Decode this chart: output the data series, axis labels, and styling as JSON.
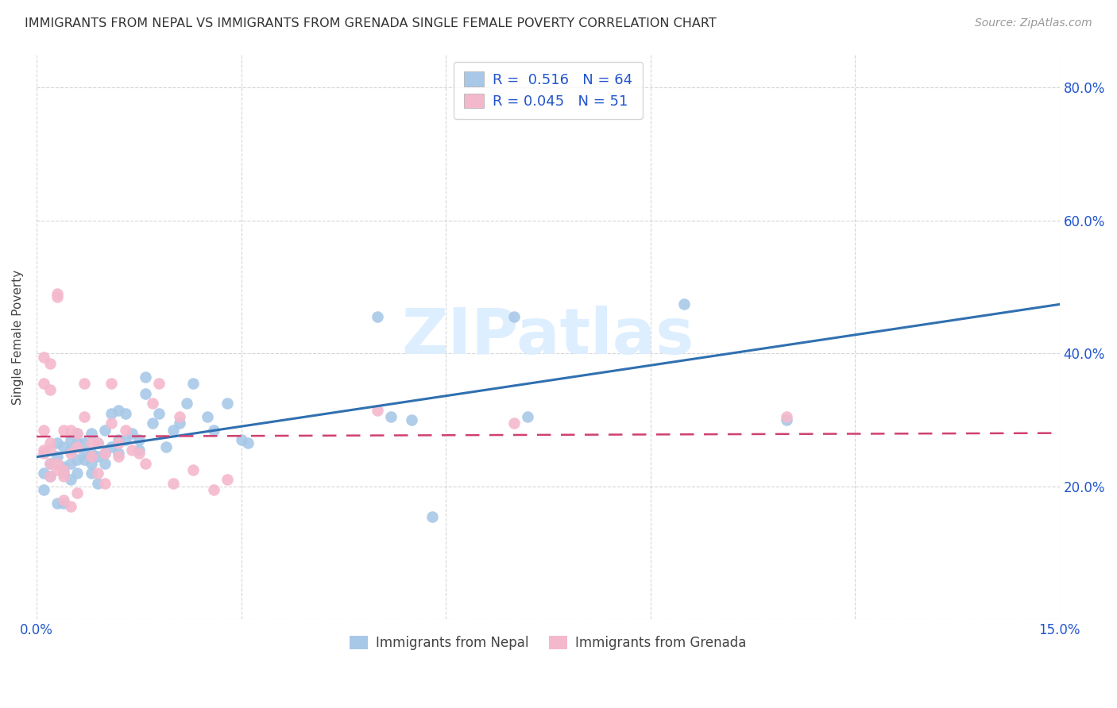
{
  "title": "IMMIGRANTS FROM NEPAL VS IMMIGRANTS FROM GRENADA SINGLE FEMALE POVERTY CORRELATION CHART",
  "source": "Source: ZipAtlas.com",
  "ylabel": "Single Female Poverty",
  "x_min": 0.0,
  "x_max": 0.15,
  "y_min": 0.0,
  "y_max": 0.85,
  "nepal_R": 0.516,
  "nepal_N": 64,
  "grenada_R": 0.045,
  "grenada_N": 51,
  "nepal_color": "#a8c8e8",
  "grenada_color": "#f4b8cc",
  "nepal_line_color": "#3070b0",
  "grenada_line_color": "#d04070",
  "background_color": "#ffffff",
  "grid_color": "#cccccc",
  "watermark_color": "#ddeeff",
  "nepal_scatter_x": [
    0.001,
    0.001,
    0.002,
    0.002,
    0.003,
    0.003,
    0.003,
    0.004,
    0.004,
    0.004,
    0.004,
    0.005,
    0.005,
    0.005,
    0.005,
    0.006,
    0.006,
    0.006,
    0.006,
    0.007,
    0.007,
    0.007,
    0.008,
    0.008,
    0.008,
    0.008,
    0.009,
    0.009,
    0.009,
    0.01,
    0.01,
    0.01,
    0.011,
    0.011,
    0.012,
    0.012,
    0.012,
    0.013,
    0.013,
    0.014,
    0.015,
    0.015,
    0.016,
    0.016,
    0.017,
    0.018,
    0.019,
    0.02,
    0.021,
    0.022,
    0.023,
    0.025,
    0.026,
    0.028,
    0.03,
    0.031,
    0.05,
    0.052,
    0.055,
    0.058,
    0.07,
    0.072,
    0.095,
    0.11
  ],
  "nepal_scatter_y": [
    0.22,
    0.195,
    0.235,
    0.215,
    0.245,
    0.175,
    0.265,
    0.26,
    0.23,
    0.22,
    0.175,
    0.235,
    0.255,
    0.27,
    0.21,
    0.24,
    0.265,
    0.28,
    0.22,
    0.25,
    0.24,
    0.265,
    0.25,
    0.235,
    0.28,
    0.22,
    0.245,
    0.265,
    0.205,
    0.25,
    0.235,
    0.285,
    0.26,
    0.31,
    0.27,
    0.25,
    0.315,
    0.27,
    0.31,
    0.28,
    0.255,
    0.27,
    0.34,
    0.365,
    0.295,
    0.31,
    0.26,
    0.285,
    0.295,
    0.325,
    0.355,
    0.305,
    0.285,
    0.325,
    0.27,
    0.265,
    0.455,
    0.305,
    0.3,
    0.155,
    0.455,
    0.305,
    0.475,
    0.3
  ],
  "grenada_scatter_x": [
    0.001,
    0.001,
    0.001,
    0.001,
    0.001,
    0.002,
    0.002,
    0.002,
    0.002,
    0.002,
    0.002,
    0.003,
    0.003,
    0.003,
    0.003,
    0.004,
    0.004,
    0.004,
    0.004,
    0.005,
    0.005,
    0.005,
    0.006,
    0.006,
    0.006,
    0.007,
    0.007,
    0.008,
    0.008,
    0.009,
    0.009,
    0.01,
    0.01,
    0.011,
    0.011,
    0.012,
    0.012,
    0.013,
    0.014,
    0.015,
    0.016,
    0.017,
    0.018,
    0.02,
    0.021,
    0.023,
    0.026,
    0.028,
    0.05,
    0.07,
    0.11
  ],
  "grenada_scatter_y": [
    0.395,
    0.355,
    0.285,
    0.255,
    0.25,
    0.265,
    0.385,
    0.345,
    0.255,
    0.235,
    0.215,
    0.485,
    0.49,
    0.235,
    0.225,
    0.285,
    0.225,
    0.215,
    0.18,
    0.285,
    0.25,
    0.17,
    0.28,
    0.26,
    0.19,
    0.355,
    0.305,
    0.265,
    0.245,
    0.265,
    0.22,
    0.25,
    0.205,
    0.355,
    0.295,
    0.265,
    0.245,
    0.285,
    0.255,
    0.25,
    0.235,
    0.325,
    0.355,
    0.205,
    0.305,
    0.225,
    0.195,
    0.21,
    0.315,
    0.295,
    0.305
  ]
}
